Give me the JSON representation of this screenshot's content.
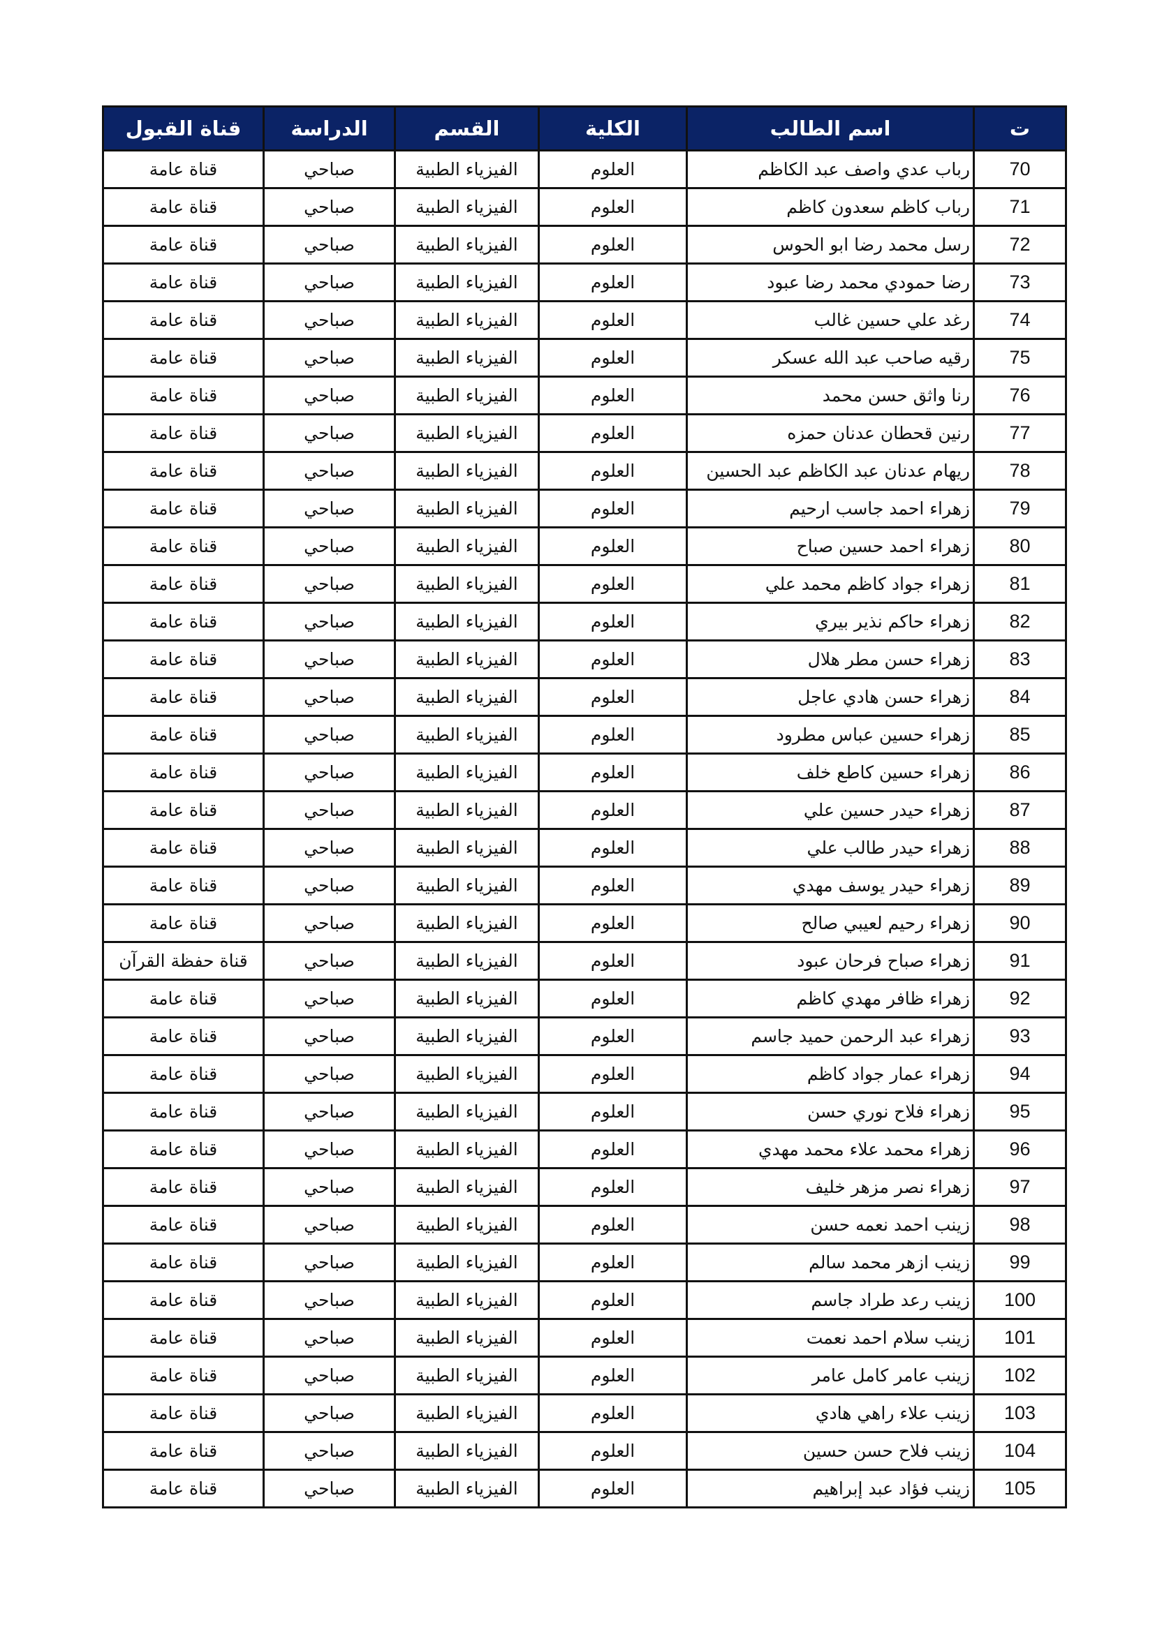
{
  "table": {
    "headers": [
      "ت",
      "اسم الطالب",
      "الكلية",
      "القسم",
      "الدراسة",
      "قناة القبول"
    ],
    "rows": [
      [
        "70",
        "رباب عدي واصف عبد الكاظم",
        "العلوم",
        "الفيزياء الطبية",
        "صباحي",
        "قناة عامة"
      ],
      [
        "71",
        "رباب كاظم سعدون كاظم",
        "العلوم",
        "الفيزياء الطبية",
        "صباحي",
        "قناة عامة"
      ],
      [
        "72",
        "رسل محمد رضا ابو الحوس",
        "العلوم",
        "الفيزياء الطبية",
        "صباحي",
        "قناة عامة"
      ],
      [
        "73",
        "رضا حمودي محمد رضا عبود",
        "العلوم",
        "الفيزياء الطبية",
        "صباحي",
        "قناة عامة"
      ],
      [
        "74",
        "رغد علي حسين غالب",
        "العلوم",
        "الفيزياء الطبية",
        "صباحي",
        "قناة عامة"
      ],
      [
        "75",
        "رقيه صاحب عبد الله عسكر",
        "العلوم",
        "الفيزياء الطبية",
        "صباحي",
        "قناة عامة"
      ],
      [
        "76",
        "رنا واثق حسن محمد",
        "العلوم",
        "الفيزياء الطبية",
        "صباحي",
        "قناة عامة"
      ],
      [
        "77",
        "رنين قحطان عدنان حمزه",
        "العلوم",
        "الفيزياء الطبية",
        "صباحي",
        "قناة عامة"
      ],
      [
        "78",
        "ريهام عدنان عبد الكاظم عبد الحسين",
        "العلوم",
        "الفيزياء الطبية",
        "صباحي",
        "قناة عامة"
      ],
      [
        "79",
        "زهراء احمد جاسب ارحيم",
        "العلوم",
        "الفيزياء الطبية",
        "صباحي",
        "قناة عامة"
      ],
      [
        "80",
        "زهراء احمد حسين صباح",
        "العلوم",
        "الفيزياء الطبية",
        "صباحي",
        "قناة عامة"
      ],
      [
        "81",
        "زهراء جواد كاظم محمد علي",
        "العلوم",
        "الفيزياء الطبية",
        "صباحي",
        "قناة عامة"
      ],
      [
        "82",
        "زهراء حاكم نذير بيري",
        "العلوم",
        "الفيزياء الطبية",
        "صباحي",
        "قناة عامة"
      ],
      [
        "83",
        "زهراء حسن مطر هلال",
        "العلوم",
        "الفيزياء الطبية",
        "صباحي",
        "قناة عامة"
      ],
      [
        "84",
        "زهراء حسن هادي عاجل",
        "العلوم",
        "الفيزياء الطبية",
        "صباحي",
        "قناة عامة"
      ],
      [
        "85",
        "زهراء حسين عباس مطرود",
        "العلوم",
        "الفيزياء الطبية",
        "صباحي",
        "قناة عامة"
      ],
      [
        "86",
        "زهراء حسين كاطع خلف",
        "العلوم",
        "الفيزياء الطبية",
        "صباحي",
        "قناة عامة"
      ],
      [
        "87",
        "زهراء حيدر حسين علي",
        "العلوم",
        "الفيزياء الطبية",
        "صباحي",
        "قناة عامة"
      ],
      [
        "88",
        "زهراء حيدر طالب علي",
        "العلوم",
        "الفيزياء الطبية",
        "صباحي",
        "قناة عامة"
      ],
      [
        "89",
        "زهراء حيدر يوسف مهدي",
        "العلوم",
        "الفيزياء الطبية",
        "صباحي",
        "قناة عامة"
      ],
      [
        "90",
        "زهراء رحيم لعيبي صالح",
        "العلوم",
        "الفيزياء الطبية",
        "صباحي",
        "قناة عامة"
      ],
      [
        "91",
        "زهراء صباح فرحان عبود",
        "العلوم",
        "الفيزياء الطبية",
        "صباحي",
        "قناة حفظة القرآن"
      ],
      [
        "92",
        "زهراء ظافر مهدي كاظم",
        "العلوم",
        "الفيزياء الطبية",
        "صباحي",
        "قناة عامة"
      ],
      [
        "93",
        "زهراء عبد الرحمن حميد جاسم",
        "العلوم",
        "الفيزياء الطبية",
        "صباحي",
        "قناة عامة"
      ],
      [
        "94",
        "زهراء عمار جواد كاظم",
        "العلوم",
        "الفيزياء الطبية",
        "صباحي",
        "قناة عامة"
      ],
      [
        "95",
        "زهراء فلاح نوري حسن",
        "العلوم",
        "الفيزياء الطبية",
        "صباحي",
        "قناة عامة"
      ],
      [
        "96",
        "زهراء محمد علاء محمد مهدي",
        "العلوم",
        "الفيزياء الطبية",
        "صباحي",
        "قناة عامة"
      ],
      [
        "97",
        "زهراء نصر مزهر خليف",
        "العلوم",
        "الفيزياء الطبية",
        "صباحي",
        "قناة عامة"
      ],
      [
        "98",
        "زينب احمد نعمه حسن",
        "العلوم",
        "الفيزياء الطبية",
        "صباحي",
        "قناة عامة"
      ],
      [
        "99",
        "زينب ازهر محمد سالم",
        "العلوم",
        "الفيزياء الطبية",
        "صباحي",
        "قناة عامة"
      ],
      [
        "100",
        "زينب رعد طراد جاسم",
        "العلوم",
        "الفيزياء الطبية",
        "صباحي",
        "قناة عامة"
      ],
      [
        "101",
        "زينب سلام احمد نعمت",
        "العلوم",
        "الفيزياء الطبية",
        "صباحي",
        "قناة عامة"
      ],
      [
        "102",
        "زينب عامر كامل عامر",
        "العلوم",
        "الفيزياء الطبية",
        "صباحي",
        "قناة عامة"
      ],
      [
        "103",
        "زينب علاء راهي هادي",
        "العلوم",
        "الفيزياء الطبية",
        "صباحي",
        "قناة عامة"
      ],
      [
        "104",
        "زينب فلاح حسن حسين",
        "العلوم",
        "الفيزياء الطبية",
        "صباحي",
        "قناة عامة"
      ],
      [
        "105",
        "زينب فؤاد عبد إبراهيم",
        "العلوم",
        "الفيزياء الطبية",
        "صباحي",
        "قناة عامة"
      ]
    ]
  },
  "colors": {
    "header_bg": "#0b2366",
    "header_text": "#ffffff",
    "border": "#111111"
  }
}
